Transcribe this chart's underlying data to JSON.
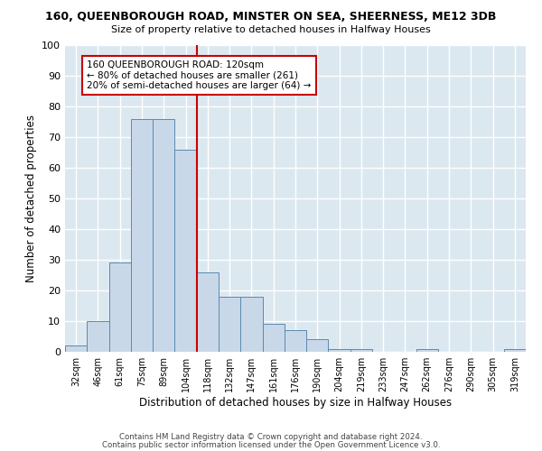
{
  "title1": "160, QUEENBOROUGH ROAD, MINSTER ON SEA, SHEERNESS, ME12 3DB",
  "title2": "Size of property relative to detached houses in Halfway Houses",
  "xlabel": "Distribution of detached houses by size in Halfway Houses",
  "ylabel": "Number of detached properties",
  "categories": [
    "32sqm",
    "46sqm",
    "61sqm",
    "75sqm",
    "89sqm",
    "104sqm",
    "118sqm",
    "132sqm",
    "147sqm",
    "161sqm",
    "176sqm",
    "190sqm",
    "204sqm",
    "219sqm",
    "233sqm",
    "247sqm",
    "262sqm",
    "276sqm",
    "290sqm",
    "305sqm",
    "319sqm"
  ],
  "values": [
    2,
    10,
    29,
    76,
    76,
    66,
    26,
    18,
    18,
    9,
    7,
    4,
    1,
    1,
    0,
    0,
    1,
    0,
    0,
    0,
    1
  ],
  "bar_color": "#c8d8e8",
  "bar_edge_color": "#5a8ab0",
  "background_color": "#dce8f0",
  "grid_color": "#ffffff",
  "fig_bg_color": "#ffffff",
  "vline_color": "#cc0000",
  "vline_x_index": 6,
  "annotation_line1": "160 QUEENBOROUGH ROAD: 120sqm",
  "annotation_line2": "← 80% of detached houses are smaller (261)",
  "annotation_line3": "20% of semi-detached houses are larger (64) →",
  "annotation_box_color": "#cc0000",
  "ylim": [
    0,
    100
  ],
  "yticks": [
    0,
    10,
    20,
    30,
    40,
    50,
    60,
    70,
    80,
    90,
    100
  ],
  "footer1": "Contains HM Land Registry data © Crown copyright and database right 2024.",
  "footer2": "Contains public sector information licensed under the Open Government Licence v3.0."
}
